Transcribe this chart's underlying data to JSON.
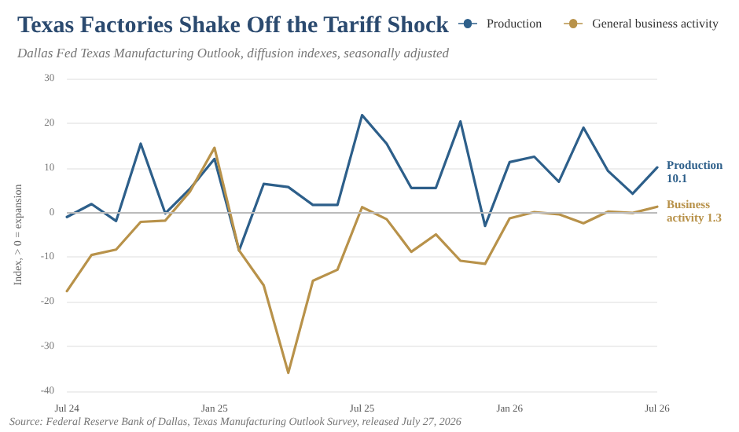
{
  "chart_data": {
    "type": "line",
    "title": "Texas Factories Shake Off the Tariff Shock",
    "subtitle": "Dallas Fed Texas Manufacturing Outlook, diffusion indexes, seasonally adjusted",
    "ylabel": "Index, > 0 = expansion",
    "categories": [
      "Jul 24",
      null,
      null,
      null,
      null,
      null,
      "Jan 25",
      null,
      null,
      null,
      null,
      null,
      "Jul 25",
      null,
      null,
      null,
      null,
      null,
      "Jan 26",
      null,
      null,
      null,
      null,
      null,
      "Jul 26"
    ],
    "series": [
      {
        "name": "Production",
        "color": "#2d5f8a",
        "values": [
          -1.0,
          1.9,
          -1.9,
          15.4,
          -0.2,
          5.3,
          12.0,
          -8.5,
          6.4,
          5.7,
          1.7,
          1.7,
          21.8,
          15.4,
          5.5,
          5.5,
          20.4,
          -3.0,
          11.3,
          12.5,
          6.9,
          19.0,
          9.3,
          4.2,
          10.1
        ]
      },
      {
        "name": "General business activity",
        "color": "#b8924a",
        "values": [
          -17.6,
          -9.5,
          -8.3,
          -2.1,
          -1.8,
          4.7,
          14.5,
          -8.5,
          -16.3,
          -35.9,
          -15.3,
          -12.8,
          1.2,
          -1.5,
          -8.8,
          -4.9,
          -10.8,
          -11.5,
          -1.3,
          0.1,
          -0.4,
          -2.4,
          0.2,
          -0.1,
          1.3
        ]
      }
    ],
    "ylim": [
      -40,
      30
    ],
    "yticks": [
      -40,
      -30,
      -20,
      -10,
      0,
      10,
      20,
      30
    ],
    "grid": "y",
    "legend": "top right",
    "marker": "none",
    "line_style": "solid",
    "ref_lines": [
      {
        "axis": "y",
        "value": 0,
        "color": "#bbbbbb"
      }
    ],
    "annotations": [
      {
        "text": "Production\n10.1",
        "x": "Jul 26",
        "y": 10.1
      },
      {
        "text": "Business\nactivity 1.3",
        "x": "Jul 26",
        "y": 1.3
      },
      "Source: Federal Reserve Bank of Dallas, Texas Manufacturing Outlook Survey, released July 27, 2026"
    ]
  }
}
